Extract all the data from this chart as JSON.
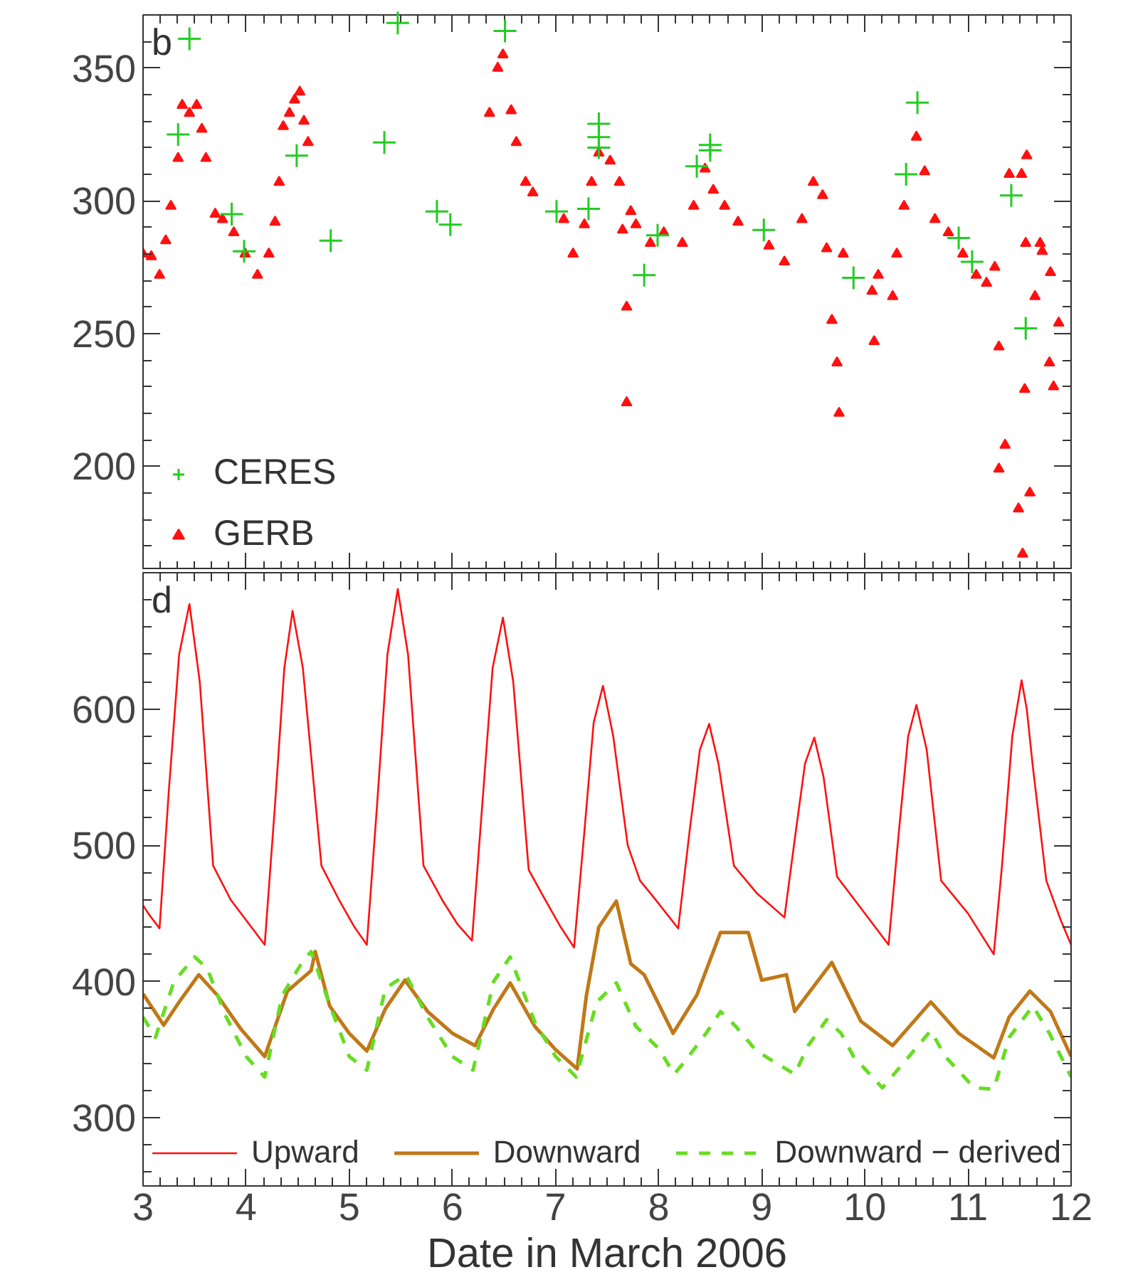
{
  "chart_data": [
    {
      "type": "scatter",
      "annotations": [
        "b"
      ],
      "xlim": [
        3,
        12
      ],
      "xticks": [
        3,
        4,
        5,
        6,
        7,
        8,
        9,
        10,
        11,
        12
      ],
      "ylim": [
        161,
        370
      ],
      "yticks": [
        200,
        250,
        300,
        350
      ],
      "tick_labels": "y",
      "legend": "bottom left",
      "grid": false,
      "series": [
        {
          "name": "CERES",
          "color": "#22cc22",
          "marker": "cross",
          "x": [
            3.34,
            3.45,
            3.86,
            3.98,
            4.49,
            4.82,
            5.34,
            5.47,
            5.85,
            5.98,
            6.51,
            7.01,
            7.32,
            7.42,
            7.42,
            7.42,
            7.86,
            7.99,
            8.37,
            8.5,
            8.5,
            9.02,
            9.89,
            10.4,
            10.51,
            10.91,
            11.04,
            11.42,
            11.56
          ],
          "values": [
            325,
            361,
            295,
            281,
            317,
            285,
            322,
            367,
            296,
            291,
            364,
            296,
            297,
            329,
            324,
            320,
            272,
            287,
            313,
            321,
            319,
            289,
            271,
            310,
            337,
            286,
            277,
            302,
            252
          ]
        },
        {
          "name": "GERB",
          "color": "#ff1010",
          "marker": "triangle",
          "x": [
            3.0,
            3.08,
            3.16,
            3.22,
            3.27,
            3.34,
            3.38,
            3.45,
            3.52,
            3.57,
            3.61,
            3.7,
            3.77,
            3.88,
            3.99,
            4.11,
            4.22,
            4.28,
            4.32,
            4.36,
            4.42,
            4.47,
            4.52,
            4.56,
            4.6,
            6.36,
            6.44,
            6.49,
            6.57,
            6.62,
            6.71,
            6.78,
            7.08,
            7.17,
            7.28,
            7.35,
            7.42,
            7.53,
            7.62,
            7.65,
            7.69,
            7.69,
            7.73,
            7.78,
            7.92,
            8.05,
            8.23,
            8.34,
            8.45,
            8.53,
            8.64,
            8.77,
            9.07,
            9.22,
            9.39,
            9.5,
            9.59,
            9.63,
            9.68,
            9.73,
            9.75,
            9.79,
            10.07,
            10.09,
            10.13,
            10.27,
            10.31,
            10.38,
            10.5,
            10.58,
            10.68,
            10.81,
            10.95,
            11.08,
            11.18,
            11.26,
            11.3,
            11.3,
            11.36,
            11.4,
            11.49,
            11.53,
            11.52,
            11.55,
            11.56,
            11.57,
            11.6,
            11.65,
            11.7,
            11.72,
            11.79,
            11.8,
            11.83,
            11.88
          ],
          "values": [
            280,
            279,
            272,
            285,
            298,
            316,
            336,
            333,
            336,
            327,
            316,
            295,
            293,
            288,
            280,
            272,
            280,
            292,
            307,
            328,
            333,
            338,
            341,
            330,
            322,
            333,
            350,
            355,
            334,
            322,
            307,
            303,
            293,
            280,
            291,
            307,
            318,
            315,
            307,
            289,
            260,
            224,
            296,
            291,
            284,
            288,
            284,
            298,
            312,
            304,
            298,
            292,
            283,
            277,
            293,
            307,
            302,
            282,
            255,
            239,
            220,
            280,
            266,
            247,
            272,
            264,
            280,
            298,
            324,
            311,
            293,
            288,
            280,
            272,
            269,
            275,
            245,
            199,
            208,
            310,
            184,
            167,
            310,
            229,
            284,
            317,
            190,
            264,
            284,
            281,
            239,
            273,
            230,
            254
          ]
        }
      ]
    },
    {
      "type": "line",
      "annotations": [
        "d"
      ],
      "xlabel": "Date in March 2006",
      "xlim": [
        3,
        12
      ],
      "xticks": [
        3,
        4,
        5,
        6,
        7,
        8,
        9,
        10,
        11,
        12
      ],
      "ylim": [
        250,
        700
      ],
      "yticks": [
        300,
        400,
        500,
        600
      ],
      "legend": "bottom",
      "grid": false,
      "series": [
        {
          "name": "Upward",
          "color": "#ff1010",
          "x": [
            3.0,
            3.05,
            3.16,
            3.25,
            3.35,
            3.45,
            3.55,
            3.68,
            3.85,
            4.0,
            4.18,
            4.28,
            4.37,
            4.45,
            4.55,
            4.73,
            4.9,
            5.05,
            5.17,
            5.27,
            5.37,
            5.47,
            5.57,
            5.72,
            5.9,
            6.05,
            6.19,
            6.29,
            6.39,
            6.49,
            6.59,
            6.74,
            6.9,
            7.05,
            7.18,
            7.28,
            7.37,
            7.46,
            7.56,
            7.7,
            7.82,
            7.95,
            8.19,
            8.3,
            8.4,
            8.49,
            8.58,
            8.73,
            8.95,
            9.22,
            9.33,
            9.42,
            9.51,
            9.6,
            9.73,
            9.95,
            10.23,
            10.33,
            10.42,
            10.5,
            10.6,
            10.74,
            11.0,
            11.25,
            11.33,
            11.43,
            11.52,
            11.57,
            11.63,
            11.76,
            11.9,
            12.0
          ],
          "values": [
            456,
            450,
            439,
            540,
            640,
            677,
            620,
            485,
            460,
            445,
            427,
            530,
            630,
            672,
            630,
            485,
            460,
            440,
            427,
            530,
            640,
            688,
            640,
            485,
            460,
            442,
            430,
            530,
            630,
            667,
            620,
            482,
            460,
            440,
            425,
            510,
            590,
            617,
            580,
            500,
            474,
            462,
            439,
            510,
            570,
            589,
            560,
            485,
            465,
            447,
            510,
            560,
            579,
            550,
            477,
            455,
            427,
            510,
            580,
            603,
            570,
            474,
            450,
            420,
            485,
            580,
            621,
            600,
            557,
            474,
            445,
            427
          ]
        },
        {
          "name": "Downward",
          "color": "#c07818",
          "x": [
            3.0,
            3.2,
            3.35,
            3.54,
            3.72,
            3.95,
            4.18,
            4.4,
            4.63,
            4.67,
            4.81,
            5.0,
            5.17,
            5.35,
            5.54,
            5.76,
            6.0,
            6.22,
            6.4,
            6.56,
            6.8,
            7.0,
            7.21,
            7.3,
            7.42,
            7.59,
            7.73,
            7.86,
            8.14,
            8.37,
            8.6,
            8.87,
            9.0,
            9.24,
            9.32,
            9.68,
            9.96,
            10.27,
            10.64,
            10.91,
            11.25,
            11.4,
            11.6,
            11.8,
            12.0
          ],
          "values": [
            391,
            368,
            385,
            405,
            390,
            365,
            345,
            393,
            408,
            422,
            382,
            362,
            349,
            380,
            401,
            378,
            362,
            353,
            380,
            399,
            367,
            350,
            336,
            390,
            440,
            459,
            413,
            405,
            362,
            390,
            436,
            436,
            401,
            405,
            378,
            414,
            371,
            353,
            385,
            362,
            344,
            374,
            393,
            378,
            345
          ]
        },
        {
          "name": "Downward − derived",
          "color": "#66dd22",
          "line_style": "dashed",
          "x": [
            3.0,
            3.12,
            3.3,
            3.5,
            3.62,
            3.8,
            4.0,
            4.18,
            4.35,
            4.55,
            4.63,
            4.8,
            5.0,
            5.17,
            5.35,
            5.55,
            5.75,
            6.0,
            6.2,
            6.4,
            6.56,
            6.8,
            7.0,
            7.2,
            7.4,
            7.59,
            7.78,
            8.0,
            8.15,
            8.25,
            8.46,
            8.6,
            8.75,
            8.95,
            9.32,
            9.45,
            9.63,
            9.77,
            9.89,
            10.17,
            10.36,
            10.64,
            10.78,
            11.06,
            11.25,
            11.4,
            11.63,
            11.79,
            12.0
          ],
          "values": [
            374,
            359,
            400,
            418,
            410,
            375,
            345,
            330,
            390,
            415,
            422,
            385,
            345,
            335,
            395,
            405,
            375,
            345,
            335,
            400,
            418,
            370,
            345,
            330,
            385,
            399,
            367,
            351,
            332,
            341,
            362,
            378,
            367,
            349,
            332,
            353,
            372,
            362,
            345,
            322,
            339,
            364,
            345,
            322,
            321,
            359,
            382,
            362,
            330
          ]
        }
      ]
    }
  ]
}
